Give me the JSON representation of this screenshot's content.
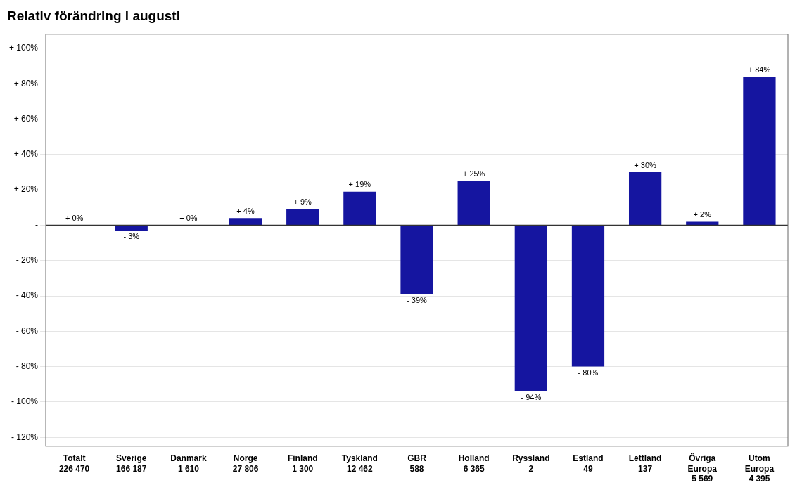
{
  "chart_data": {
    "type": "bar",
    "title": "Relativ förändring i augusti",
    "categories": [
      "Totalt",
      "Sverige",
      "Danmark",
      "Norge",
      "Finland",
      "Tyskland",
      "GBR",
      "Holland",
      "Ryssland",
      "Estland",
      "Lettland",
      "Övriga\nEuropa",
      "Utom\nEuropa"
    ],
    "subcategories": [
      "226 470",
      "166 187",
      "1 610",
      "27 806",
      "1 300",
      "12 462",
      "588",
      "6 365",
      "2",
      "49",
      "137",
      "5 569",
      "4 395"
    ],
    "values": [
      0,
      -3,
      0,
      4,
      9,
      19,
      -39,
      25,
      -94,
      -80,
      30,
      2,
      84
    ],
    "value_labels": [
      "+ 0%",
      "- 3%",
      "+ 0%",
      "+ 4%",
      "+ 9%",
      "+ 19%",
      "- 39%",
      "+ 25%",
      "- 94%",
      "- 80%",
      "+ 30%",
      "+ 2%",
      "+ 84%"
    ],
    "data_labels": true,
    "color": "#1515a0",
    "ylim": [
      -125,
      108
    ],
    "yticks": [
      {
        "value": 100,
        "label": "+ 100%"
      },
      {
        "value": 80,
        "label": "+ 80%"
      },
      {
        "value": 60,
        "label": "+ 60%"
      },
      {
        "value": 40,
        "label": "+ 40%"
      },
      {
        "value": 20,
        "label": "+ 20%"
      },
      {
        "value": 0,
        "label": "-"
      },
      {
        "value": -20,
        "label": "- 20%"
      },
      {
        "value": -40,
        "label": "- 40%"
      },
      {
        "value": -60,
        "label": "- 60%"
      },
      {
        "value": -80,
        "label": "- 80%"
      },
      {
        "value": -100,
        "label": "- 100%"
      },
      {
        "value": -120,
        "label": "- 120%"
      }
    ],
    "grid": true
  }
}
